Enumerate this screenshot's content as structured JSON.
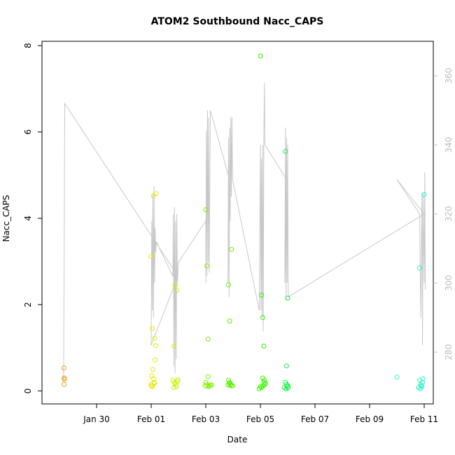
{
  "chart_data": {
    "type": "scatter",
    "title": "ATOM2 Southbound Nacc_CAPS",
    "xlabel": "Date",
    "ylabel": "Nacc_CAPS",
    "xlim": [
      "2017-01-28T00:00",
      "2017-02-11T08:00"
    ],
    "ylim": [
      -0.3,
      8.1
    ],
    "x_ticks": [
      {
        "date": "2017-01-30",
        "label": "Jan 30"
      },
      {
        "date": "2017-02-01",
        "label": "Feb 01"
      },
      {
        "date": "2017-02-03",
        "label": "Feb 03"
      },
      {
        "date": "2017-02-05",
        "label": "Feb 05"
      },
      {
        "date": "2017-02-07",
        "label": "Feb 07"
      },
      {
        "date": "2017-02-09",
        "label": "Feb 09"
      },
      {
        "date": "2017-02-11",
        "label": "Feb 11"
      }
    ],
    "y_ticks": [
      0,
      2,
      4,
      6,
      8
    ],
    "right_axis": {
      "ticks": [
        280,
        300,
        320,
        340,
        360
      ],
      "ylim": [
        265,
        370
      ],
      "color": "#bdbdbd"
    },
    "grid": false,
    "legend": "none",
    "line_color": "#c8c8c8",
    "point_colors": [
      "#f09a1a",
      "#e8e800",
      "#c6f200",
      "#7cf200",
      "#2ef200",
      "#00f25a",
      "#2ef2c8"
    ],
    "series": [
      {
        "color": "#f09a1a",
        "points": [
          [
            "2017-01-28T19:20",
            0.53
          ],
          [
            "2017-01-28T19:30",
            0.3
          ],
          [
            "2017-01-28T19:40",
            0.27
          ],
          [
            "2017-01-28T19:25",
            0.15
          ]
        ]
      },
      {
        "color": "#e8e800",
        "points": [
          [
            "2017-02-01T00:00",
            3.12
          ],
          [
            "2017-02-01T02:00",
            4.52
          ],
          [
            "2017-02-01T04:30",
            4.57
          ],
          [
            "2017-02-01T01:00",
            1.45
          ],
          [
            "2017-02-01T03:00",
            1.22
          ],
          [
            "2017-02-01T04:00",
            1.05
          ],
          [
            "2017-02-01T03:30",
            0.72
          ],
          [
            "2017-02-01T01:30",
            0.5
          ],
          [
            "2017-02-01T00:30",
            0.35
          ],
          [
            "2017-02-01T02:00",
            0.28
          ],
          [
            "2017-02-01T02:30",
            0.2
          ],
          [
            "2017-02-01T00:00",
            0.15
          ],
          [
            "2017-02-01T01:00",
            0.1
          ],
          [
            "2017-02-01T03:00",
            0.18
          ],
          [
            "2017-02-01T00:20",
            0.12
          ]
        ]
      },
      {
        "color": "#c6f200",
        "points": [
          [
            "2017-02-01T21:00",
            2.45
          ],
          [
            "2017-02-01T22:30",
            2.33
          ],
          [
            "2017-02-01T20:00",
            1.04
          ],
          [
            "2017-02-01T19:00",
            0.25
          ],
          [
            "2017-02-01T20:30",
            0.2
          ],
          [
            "2017-02-01T21:30",
            0.15
          ],
          [
            "2017-02-01T22:00",
            0.1
          ],
          [
            "2017-02-01T23:00",
            0.22
          ],
          [
            "2017-02-01T20:00",
            0.08
          ],
          [
            "2017-02-01T23:30",
            0.26
          ]
        ]
      },
      {
        "color": "#7cf200",
        "points": [
          [
            "2017-02-03T00:00",
            4.2
          ],
          [
            "2017-02-03T01:00",
            2.9
          ],
          [
            "2017-02-03T02:00",
            1.2
          ],
          [
            "2017-02-03T02:00",
            0.33
          ],
          [
            "2017-02-03T00:00",
            0.2
          ],
          [
            "2017-02-03T01:00",
            0.15
          ],
          [
            "2017-02-03T03:00",
            0.12
          ],
          [
            "2017-02-03T04:00",
            0.13
          ],
          [
            "2017-02-03T02:30",
            0.1
          ],
          [
            "2017-02-03T05:00",
            0.14
          ],
          [
            "2017-02-02T23:30",
            0.12
          ]
        ]
      },
      {
        "color": "#5ef200",
        "points": [
          [
            "2017-02-03T20:00",
            2.46
          ],
          [
            "2017-02-03T21:00",
            1.62
          ],
          [
            "2017-02-03T22:30",
            3.28
          ],
          [
            "2017-02-03T20:00",
            0.25
          ],
          [
            "2017-02-03T21:00",
            0.2
          ],
          [
            "2017-02-03T22:00",
            0.15
          ],
          [
            "2017-02-03T23:00",
            0.12
          ],
          [
            "2017-02-03T20:30",
            0.18
          ],
          [
            "2017-02-03T21:30",
            0.13
          ],
          [
            "2017-02-03T23:30",
            0.12
          ],
          [
            "2017-02-03T19:30",
            0.14
          ]
        ]
      },
      {
        "color": "#38f200",
        "points": [
          [
            "2017-02-05T00:00",
            7.76
          ],
          [
            "2017-02-05T01:00",
            2.22
          ],
          [
            "2017-02-05T02:00",
            1.7
          ],
          [
            "2017-02-05T03:00",
            1.04
          ],
          [
            "2017-02-05T02:00",
            0.3
          ],
          [
            "2017-02-05T03:00",
            0.2
          ],
          [
            "2017-02-05T04:00",
            0.15
          ],
          [
            "2017-02-05T00:00",
            0.1
          ],
          [
            "2017-02-05T01:00",
            0.08
          ],
          [
            "2017-02-05T02:30",
            0.12
          ],
          [
            "2017-02-05T03:30",
            0.25
          ],
          [
            "2017-02-04T23:00",
            0.05
          ],
          [
            "2017-02-05T04:30",
            0.18
          ]
        ]
      },
      {
        "color": "#10f240",
        "points": [
          [
            "2017-02-05T22:00",
            5.55
          ],
          [
            "2017-02-06T00:00",
            2.15
          ],
          [
            "2017-02-05T23:00",
            0.58
          ],
          [
            "2017-02-05T22:00",
            0.2
          ],
          [
            "2017-02-05T23:00",
            0.15
          ],
          [
            "2017-02-06T00:00",
            0.12
          ],
          [
            "2017-02-05T21:00",
            0.08
          ],
          [
            "2017-02-05T22:30",
            0.05
          ],
          [
            "2017-02-05T23:30",
            0.1
          ],
          [
            "2017-02-06T00:30",
            0.07
          ]
        ]
      },
      {
        "color": "#2ef2c8",
        "points": [
          [
            "2017-02-10T00:00",
            0.32
          ],
          [
            "2017-02-10T20:00",
            2.85
          ],
          [
            "2017-02-11T00:00",
            4.55
          ],
          [
            "2017-02-10T20:00",
            0.25
          ],
          [
            "2017-02-10T21:00",
            0.15
          ],
          [
            "2017-02-10T22:00",
            0.1
          ],
          [
            "2017-02-10T23:00",
            0.28
          ],
          [
            "2017-02-10T19:00",
            0.08
          ],
          [
            "2017-02-10T20:30",
            0.05
          ],
          [
            "2017-02-10T21:30",
            0.12
          ],
          [
            "2017-02-10T22:30",
            0.2
          ]
        ]
      }
    ],
    "right_series_line": [
      [
        "2017-01-28T19:00",
        272
      ],
      [
        "2017-01-28T20:00",
        352
      ],
      [
        "2017-02-01T23:30",
        302
      ],
      [
        "2017-02-01T00:00",
        282
      ],
      [
        "2017-02-01T00:30",
        318
      ],
      [
        "2017-02-01T01:00",
        292
      ],
      [
        "2017-02-01T01:30",
        326
      ],
      [
        "2017-02-01T02:00",
        290
      ],
      [
        "2017-02-01T02:30",
        328
      ],
      [
        "2017-02-01T03:00",
        300
      ],
      [
        "2017-02-01T03:30",
        316
      ],
      [
        "2017-02-01T04:00",
        309
      ],
      [
        "2017-02-01T04:30",
        312
      ],
      [
        "2017-02-01T19:00",
        302
      ],
      [
        "2017-02-01T19:30",
        320
      ],
      [
        "2017-02-01T20:00",
        276
      ],
      [
        "2017-02-01T20:30",
        322
      ],
      [
        "2017-02-01T21:00",
        274
      ],
      [
        "2017-02-01T21:30",
        318
      ],
      [
        "2017-02-01T22:00",
        278
      ],
      [
        "2017-02-01T22:30",
        320
      ],
      [
        "2017-02-01T23:00",
        300
      ],
      [
        "2017-02-02T00:00",
        306
      ],
      [
        "2017-02-03T00:00",
        318
      ],
      [
        "2017-02-03T00:00",
        300
      ],
      [
        "2017-02-03T00:30",
        344
      ],
      [
        "2017-02-03T01:00",
        302
      ],
      [
        "2017-02-03T01:30",
        350
      ],
      [
        "2017-02-03T02:00",
        306
      ],
      [
        "2017-02-03T02:30",
        348
      ],
      [
        "2017-02-03T03:00",
        303
      ],
      [
        "2017-02-03T04:00",
        350
      ],
      [
        "2017-02-03T20:00",
        331
      ],
      [
        "2017-02-03T19:30",
        300
      ],
      [
        "2017-02-03T20:00",
        342
      ],
      [
        "2017-02-03T20:30",
        296
      ],
      [
        "2017-02-03T21:00",
        345
      ],
      [
        "2017-02-03T21:30",
        318
      ],
      [
        "2017-02-03T22:00",
        348
      ],
      [
        "2017-02-03T22:30",
        325
      ],
      [
        "2017-02-03T23:00",
        348
      ],
      [
        "2017-02-03T23:30",
        330
      ],
      [
        "2017-02-04T23:00",
        292
      ],
      [
        "2017-02-05T00:00",
        340
      ],
      [
        "2017-02-05T00:30",
        292
      ],
      [
        "2017-02-05T01:00",
        336
      ],
      [
        "2017-02-05T01:30",
        290
      ],
      [
        "2017-02-05T02:00",
        340
      ],
      [
        "2017-02-05T02:30",
        286
      ],
      [
        "2017-02-05T03:00",
        342
      ],
      [
        "2017-02-05T03:30",
        358
      ],
      [
        "2017-02-05T04:00",
        340
      ],
      [
        "2017-02-05T23:00",
        330
      ],
      [
        "2017-02-05T21:30",
        300
      ],
      [
        "2017-02-05T22:00",
        345
      ],
      [
        "2017-02-05T22:30",
        295
      ],
      [
        "2017-02-05T23:00",
        342
      ],
      [
        "2017-02-05T23:30",
        300
      ],
      [
        "2017-02-06T00:00",
        340
      ],
      [
        "2017-02-06T00:30",
        296
      ],
      [
        "2017-02-11T00:00",
        320
      ],
      [
        "2017-02-10T00:00",
        330
      ],
      [
        "2017-02-10T20:00",
        320
      ],
      [
        "2017-02-10T21:00",
        290
      ],
      [
        "2017-02-10T22:00",
        326
      ],
      [
        "2017-02-10T22:30",
        282
      ],
      [
        "2017-02-10T23:00",
        326
      ],
      [
        "2017-02-11T00:00",
        300
      ],
      [
        "2017-02-11T00:30",
        332
      ],
      [
        "2017-02-11T01:00",
        298
      ]
    ]
  }
}
